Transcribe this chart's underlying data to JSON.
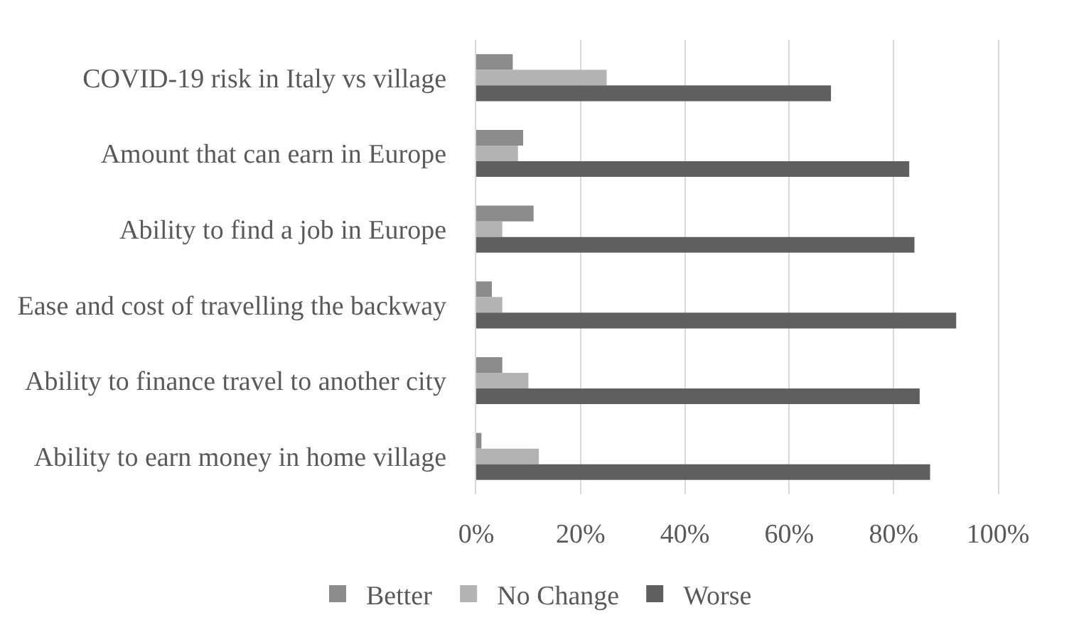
{
  "chart_data": {
    "type": "bar",
    "orientation": "horizontal",
    "categories": [
      "COVID-19 risk in Italy vs village",
      "Amount that can earn in Europe",
      "Ability to find a job in Europe",
      "Ease and cost of travelling the backway",
      "Ability to finance travel to another city",
      "Ability to earn money in home village"
    ],
    "series": [
      {
        "name": "Better",
        "color": "#8c8c8c",
        "values": [
          7,
          9,
          11,
          3,
          5,
          1
        ]
      },
      {
        "name": "No Change",
        "color": "#b3b3b3",
        "values": [
          25,
          8,
          5,
          5,
          10,
          12
        ]
      },
      {
        "name": "Worse",
        "color": "#5f5f5f",
        "values": [
          68,
          83,
          84,
          92,
          85,
          87
        ]
      }
    ],
    "xlim": [
      0,
      100
    ],
    "xticks": [
      {
        "value": 0,
        "label": "0%"
      },
      {
        "value": 20,
        "label": "20%"
      },
      {
        "value": 40,
        "label": "40%"
      },
      {
        "value": 60,
        "label": "60%"
      },
      {
        "value": 80,
        "label": "80%"
      },
      {
        "value": 100,
        "label": "100%"
      }
    ],
    "grid": "x",
    "legend": "bottom"
  }
}
